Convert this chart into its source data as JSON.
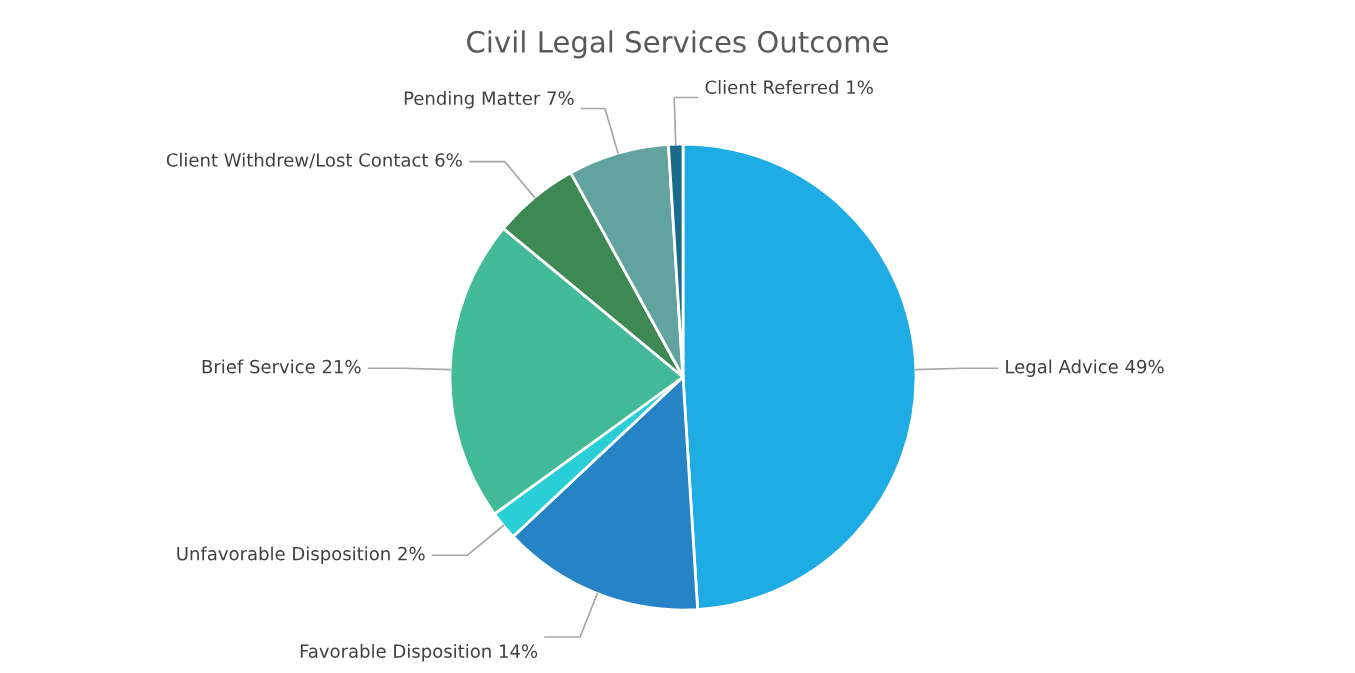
{
  "chart_data": {
    "type": "pie",
    "title": "Civil Legal Services Outcome",
    "categories": [
      "Legal Advice",
      "Favorable Disposition",
      "Unfavorable Disposition",
      "Brief Service",
      "Client Withdrew/Lost Contact",
      "Pending Matter",
      "Client Referred"
    ],
    "values": [
      49,
      14,
      2,
      21,
      6,
      7,
      1
    ],
    "value_labels": [
      "49%",
      "14%",
      "2%",
      "21%",
      "6%",
      "7%",
      "1%"
    ],
    "colors": [
      "#1fabe3",
      "#2683c6",
      "#29ced6",
      "#42ba97",
      "#3e8853",
      "#62a39f",
      "#1a6b8a"
    ],
    "legend": false
  }
}
